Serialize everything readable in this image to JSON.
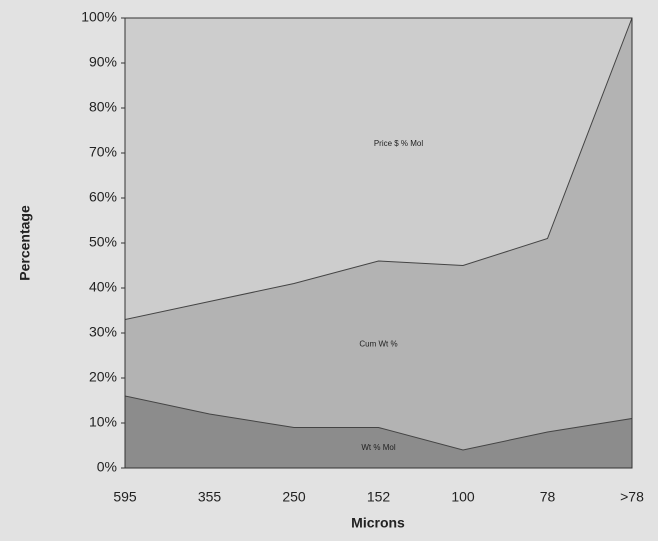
{
  "chart_data": {
    "type": "area",
    "x_label": "Microns",
    "y_label": "Percentage",
    "categories": [
      "595",
      "355",
      "250",
      "152",
      "100",
      "78",
      ">78"
    ],
    "series": [
      {
        "name": "Price $ % Mol",
        "color": "#cdcdcd",
        "values": [
          100,
          100,
          100,
          100,
          100,
          100,
          100
        ]
      },
      {
        "name": "Cum Wt %",
        "color": "#b3b3b3",
        "values": [
          33,
          37,
          41,
          46,
          45,
          51,
          100
        ]
      },
      {
        "name": "Wt % Mol",
        "color": "#8c8c8c",
        "values": [
          16,
          12,
          9,
          9,
          4,
          8,
          11
        ]
      }
    ],
    "ylim": [
      0,
      100
    ],
    "yticks": [
      {
        "value": 0,
        "label": "0%"
      },
      {
        "value": 10,
        "label": "10%"
      },
      {
        "value": 20,
        "label": "20%"
      },
      {
        "value": 30,
        "label": "30%"
      },
      {
        "value": 40,
        "label": "40%"
      },
      {
        "value": 50,
        "label": "50%"
      },
      {
        "value": 60,
        "label": "60%"
      },
      {
        "value": 70,
        "label": "70%"
      },
      {
        "value": 80,
        "label": "80%"
      },
      {
        "value": 90,
        "label": "90%"
      },
      {
        "value": 100,
        "label": "100%"
      }
    ]
  }
}
